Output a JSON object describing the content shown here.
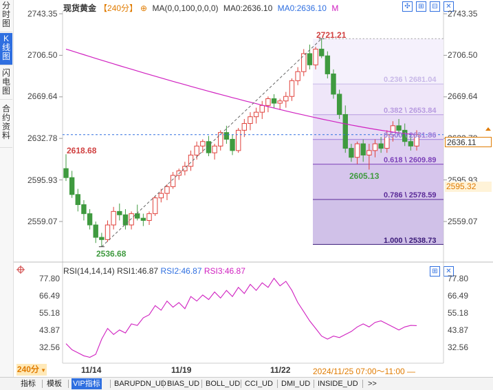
{
  "side_tabs": [
    "分时图",
    "K线图",
    "闪电图",
    "合约资料"
  ],
  "header": {
    "symbol": "现货黄金",
    "period": "【240分】",
    "ma_label": "MA(0,0,100,0,0,0)",
    "ma0": "MA0:2636.10",
    "ma0b": "MA0:2636.10",
    "m_marker": "M"
  },
  "price_axis": [
    "2743.35",
    "2706.50",
    "2669.64",
    "2632.78",
    "2595.93",
    "2559.07"
  ],
  "price_badges": {
    "current": "2636.11",
    "secondary": "2595.32"
  },
  "annotations": {
    "high": "2721.21",
    "low_left": "2536.68",
    "pivot": "2618.68",
    "swing_low": "2605.13"
  },
  "fibonacci": [
    "0.236 \\ 2681.04",
    "0.382 \\ 2653.84",
    "0.500 \\ 2631.86",
    "0.618 \\ 2609.89",
    "0.786 \\ 2578.59",
    "1.000 \\ 2538.73"
  ],
  "rsi": {
    "title": "RSI(14,14,14)",
    "rsi1": "RSI1:46.87",
    "rsi2": "RSI2:46.87",
    "rsi3": "RSI3:46.87",
    "axis": [
      "77.80",
      "66.49",
      "55.18",
      "43.87",
      "32.56"
    ]
  },
  "dates": [
    "11/14",
    "11/19",
    "11/22"
  ],
  "cursor_time": "2024/11/25 07:00～11:00 —",
  "period_button": "240分",
  "bottom_tabs": [
    "指标",
    "模板",
    "VIP指标",
    "BARUPDN_UD",
    "BIAS_UD",
    "BOLL_UD",
    "CCI_UD",
    "DMI_UD",
    "INSIDE_UD",
    ">>"
  ],
  "colors": {
    "up": "#e0403a",
    "down": "#3f9a3f",
    "ma": "#d020c0",
    "accent": "#2f6fe0",
    "fib_fill": "#d8c8f0"
  },
  "chart_data": {
    "type": "candlestick",
    "title": "现货黄金 【240分】",
    "ylim": [
      2530,
      2750
    ],
    "ohlc": [
      [
        2606,
        2618.68,
        2595,
        2598
      ],
      [
        2598,
        2604,
        2580,
        2583
      ],
      [
        2583,
        2588,
        2568,
        2574
      ],
      [
        2574,
        2578,
        2560,
        2566
      ],
      [
        2566,
        2570,
        2552,
        2556
      ],
      [
        2556,
        2559,
        2540,
        2545
      ],
      [
        2545,
        2549,
        2536.68,
        2543
      ],
      [
        2543,
        2560,
        2541,
        2556
      ],
      [
        2556,
        2572,
        2552,
        2568
      ],
      [
        2568,
        2575,
        2560,
        2565
      ],
      [
        2565,
        2570,
        2552,
        2556
      ],
      [
        2556,
        2568,
        2552,
        2566
      ],
      [
        2566,
        2574,
        2560,
        2562
      ],
      [
        2562,
        2566,
        2555,
        2560
      ],
      [
        2560,
        2568,
        2556,
        2566
      ],
      [
        2566,
        2582,
        2564,
        2580
      ],
      [
        2580,
        2588,
        2576,
        2584
      ],
      [
        2584,
        2592,
        2578,
        2590
      ],
      [
        2590,
        2603,
        2588,
        2600
      ],
      [
        2600,
        2606,
        2596,
        2604
      ],
      [
        2604,
        2612,
        2600,
        2608
      ],
      [
        2608,
        2622,
        2604,
        2618
      ],
      [
        2618,
        2630,
        2614,
        2626
      ],
      [
        2626,
        2632,
        2620,
        2630
      ],
      [
        2630,
        2635,
        2617,
        2620
      ],
      [
        2620,
        2628,
        2614,
        2626
      ],
      [
        2626,
        2640,
        2622,
        2638
      ],
      [
        2638,
        2644,
        2628,
        2632
      ],
      [
        2632,
        2636,
        2618,
        2622
      ],
      [
        2622,
        2642,
        2620,
        2640
      ],
      [
        2640,
        2650,
        2634,
        2646
      ],
      [
        2646,
        2656,
        2640,
        2652
      ],
      [
        2652,
        2660,
        2646,
        2656
      ],
      [
        2656,
        2666,
        2650,
        2662
      ],
      [
        2662,
        2670,
        2656,
        2668
      ],
      [
        2668,
        2672,
        2660,
        2664
      ],
      [
        2664,
        2668,
        2658,
        2666
      ],
      [
        2666,
        2674,
        2660,
        2670
      ],
      [
        2670,
        2686,
        2666,
        2684
      ],
      [
        2684,
        2696,
        2680,
        2692
      ],
      [
        2692,
        2712,
        2688,
        2708
      ],
      [
        2708,
        2716,
        2694,
        2698
      ],
      [
        2698,
        2714,
        2694,
        2712
      ],
      [
        2712,
        2721.21,
        2704,
        2706
      ],
      [
        2706,
        2710,
        2686,
        2690
      ],
      [
        2690,
        2694,
        2668,
        2672
      ],
      [
        2672,
        2676,
        2650,
        2654
      ],
      [
        2654,
        2662,
        2620,
        2624
      ],
      [
        2624,
        2628,
        2612,
        2616
      ],
      [
        2616,
        2630,
        2610,
        2628
      ],
      [
        2628,
        2632,
        2612,
        2618
      ],
      [
        2618,
        2628,
        2605.13,
        2622
      ],
      [
        2622,
        2632,
        2616,
        2628
      ],
      [
        2628,
        2634,
        2620,
        2624
      ],
      [
        2624,
        2640,
        2620,
        2636
      ],
      [
        2636,
        2648,
        2630,
        2644
      ],
      [
        2644,
        2650,
        2636,
        2640
      ],
      [
        2640,
        2646,
        2626,
        2630
      ],
      [
        2630,
        2636,
        2622,
        2626
      ],
      [
        2626,
        2640,
        2622,
        2636
      ]
    ],
    "ma100_start": 2712,
    "ma100_end": 2636.1,
    "rsi_ylim": [
      27,
      82
    ],
    "rsi_values": [
      35,
      31,
      29,
      27,
      26,
      28,
      38,
      45,
      41,
      44,
      42,
      48,
      47,
      52,
      54,
      60,
      57,
      63,
      59,
      62,
      58,
      66,
      63,
      67,
      64,
      69,
      65,
      70,
      66,
      72,
      68,
      74,
      70,
      75,
      72,
      78,
      73,
      76,
      70,
      62,
      56,
      50,
      45,
      40,
      38,
      40,
      39,
      41,
      43,
      46,
      48,
      46,
      49,
      50,
      48,
      46,
      44,
      46,
      47,
      46.87
    ]
  }
}
